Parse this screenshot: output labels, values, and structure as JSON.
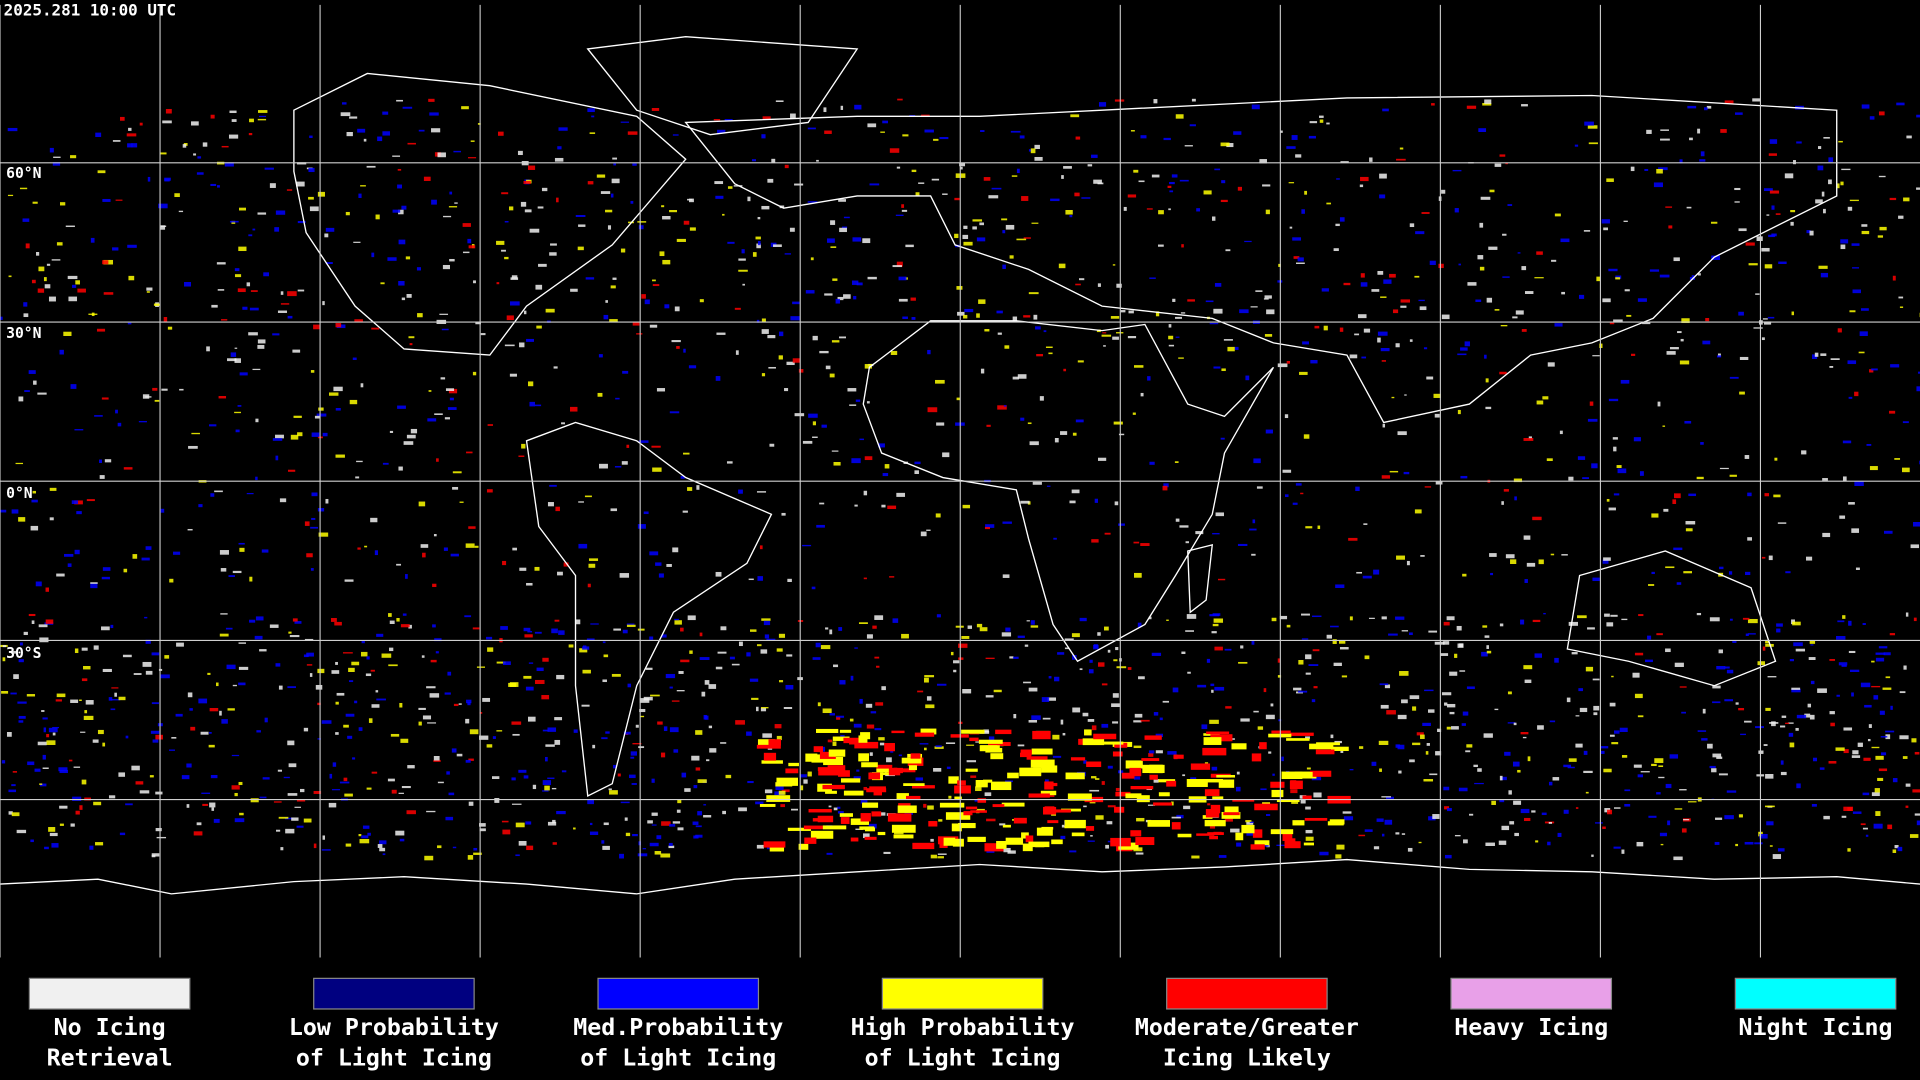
{
  "header": {
    "timestamp": "2025.281 10:00 UTC"
  },
  "map": {
    "latitude_labels": [
      "60°N",
      "30°N",
      "0°N",
      "30°S"
    ]
  },
  "legend": {
    "items": [
      {
        "label": [
          "No Icing",
          "Retrieval"
        ],
        "color": "#f0f0f0"
      },
      {
        "label": [
          "Low Probability",
          "of Light Icing"
        ],
        "color": "#000080"
      },
      {
        "label": [
          "Med.Probability",
          "of Light Icing"
        ],
        "color": "#0000ff"
      },
      {
        "label": [
          "High Probability",
          "of Light Icing"
        ],
        "color": "#ffff00"
      },
      {
        "label": [
          "Moderate/Greater",
          "Icing Likely"
        ],
        "color": "#ff0000"
      },
      {
        "label": [
          "Heavy Icing",
          ""
        ],
        "color": "#e8a0e8"
      },
      {
        "label": [
          "Night Icing",
          ""
        ],
        "color": "#00ffff"
      }
    ]
  }
}
